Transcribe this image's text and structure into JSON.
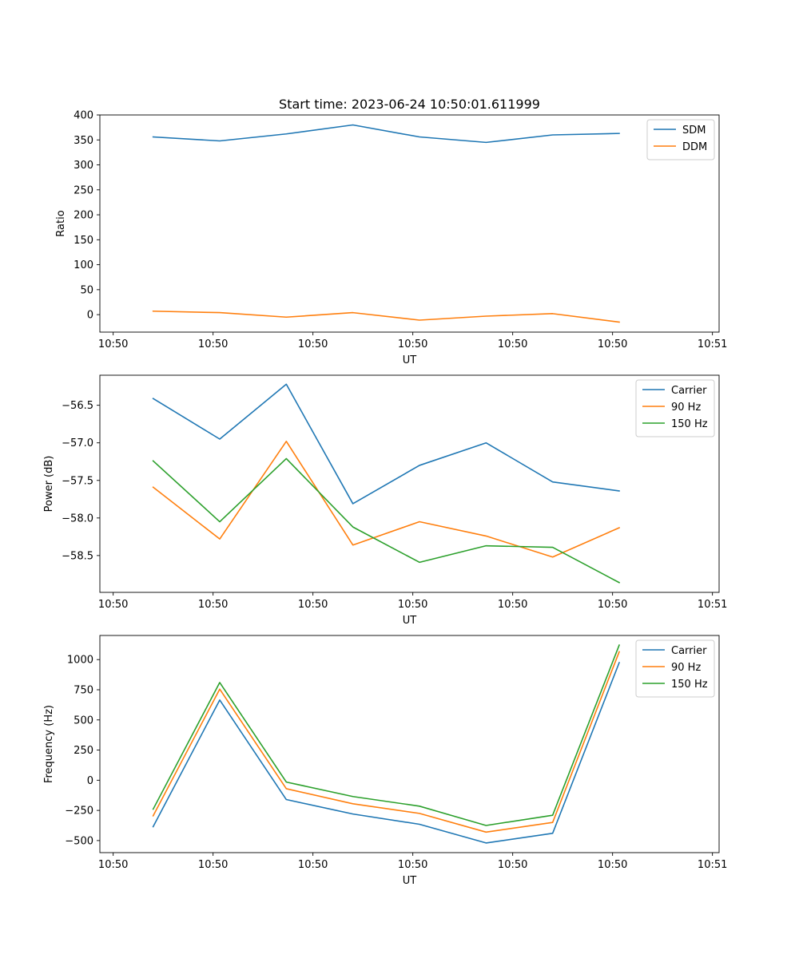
{
  "title": "Start time: 2023-06-24 10:50:01.611999",
  "colors": {
    "blue": "#1f77b4",
    "orange": "#ff7f0e",
    "green": "#2ca02c"
  },
  "chart_data": [
    {
      "type": "line",
      "title": "Start time: 2023-06-24 10:50:01.611999",
      "xlabel": "UT",
      "ylabel": "Ratio",
      "x": [
        1,
        2,
        3,
        4,
        5,
        6,
        7,
        8
      ],
      "xlim": [
        0.2,
        9.5
      ],
      "xticks": [
        0.4,
        1.9,
        3.4,
        4.9,
        6.4,
        7.9,
        9.4
      ],
      "xticklabels": [
        "10:50",
        "10:50",
        "10:50",
        "10:50",
        "10:50",
        "10:50",
        "10:51"
      ],
      "ylim": [
        -35,
        400
      ],
      "yticks": [
        0,
        50,
        100,
        150,
        200,
        250,
        300,
        350,
        400
      ],
      "yticklabels": [
        "0",
        "50",
        "100",
        "150",
        "200",
        "250",
        "300",
        "350",
        "400"
      ],
      "legend_position": "top-right",
      "grid": false,
      "series": [
        {
          "name": "SDM",
          "color": "#1f77b4",
          "values": [
            356,
            348,
            362,
            380,
            356,
            345,
            360,
            363
          ]
        },
        {
          "name": "DDM",
          "color": "#ff7f0e",
          "values": [
            7,
            4,
            -5,
            4,
            -11,
            -3,
            2,
            -15
          ]
        }
      ]
    },
    {
      "type": "line",
      "xlabel": "UT",
      "ylabel": "Power (dB)",
      "x": [
        1,
        2,
        3,
        4,
        5,
        6,
        7,
        8
      ],
      "xlim": [
        0.2,
        9.5
      ],
      "xticks": [
        0.4,
        1.9,
        3.4,
        4.9,
        6.4,
        7.9,
        9.4
      ],
      "xticklabels": [
        "10:50",
        "10:50",
        "10:50",
        "10:50",
        "10:50",
        "10:50",
        "10:51"
      ],
      "ylim": [
        -58.99,
        -56.1
      ],
      "yticks": [
        -58.5,
        -58.0,
        -57.5,
        -57.0,
        -56.5
      ],
      "yticklabels": [
        "−58.5",
        "−58.0",
        "−57.5",
        "−57.0",
        "−56.5"
      ],
      "legend_position": "top-right",
      "grid": false,
      "series": [
        {
          "name": "Carrier",
          "color": "#1f77b4",
          "values": [
            -56.41,
            -56.95,
            -56.22,
            -57.81,
            -57.3,
            -57.0,
            -57.52,
            -57.64
          ]
        },
        {
          "name": "90 Hz",
          "color": "#ff7f0e",
          "values": [
            -57.59,
            -58.28,
            -56.98,
            -58.36,
            -58.05,
            -58.24,
            -58.52,
            -58.13
          ]
        },
        {
          "name": "150 Hz",
          "color": "#2ca02c",
          "values": [
            -57.24,
            -58.05,
            -57.21,
            -58.12,
            -58.59,
            -58.37,
            -58.39,
            -58.86
          ]
        }
      ]
    },
    {
      "type": "line",
      "xlabel": "UT",
      "ylabel": "Frequency (Hz)",
      "x": [
        1,
        2,
        3,
        4,
        5,
        6,
        7,
        8
      ],
      "xlim": [
        0.2,
        9.5
      ],
      "xticks": [
        0.4,
        1.9,
        3.4,
        4.9,
        6.4,
        7.9,
        9.4
      ],
      "xticklabels": [
        "10:50",
        "10:50",
        "10:50",
        "10:50",
        "10:50",
        "10:50",
        "10:51"
      ],
      "ylim": [
        -600,
        1200
      ],
      "yticks": [
        -500,
        -250,
        0,
        250,
        500,
        750,
        1000
      ],
      "yticklabels": [
        "−500",
        "−250",
        "0",
        "250",
        "500",
        "750",
        "1000"
      ],
      "legend_position": "top-right",
      "grid": false,
      "series": [
        {
          "name": "Carrier",
          "color": "#1f77b4",
          "values": [
            -385,
            665,
            -160,
            -280,
            -365,
            -520,
            -440,
            975
          ]
        },
        {
          "name": "90 Hz",
          "color": "#ff7f0e",
          "values": [
            -295,
            755,
            -70,
            -195,
            -275,
            -430,
            -350,
            1065
          ]
        },
        {
          "name": "150 Hz",
          "color": "#2ca02c",
          "values": [
            -240,
            810,
            -15,
            -135,
            -215,
            -375,
            -290,
            1120
          ]
        }
      ]
    }
  ]
}
